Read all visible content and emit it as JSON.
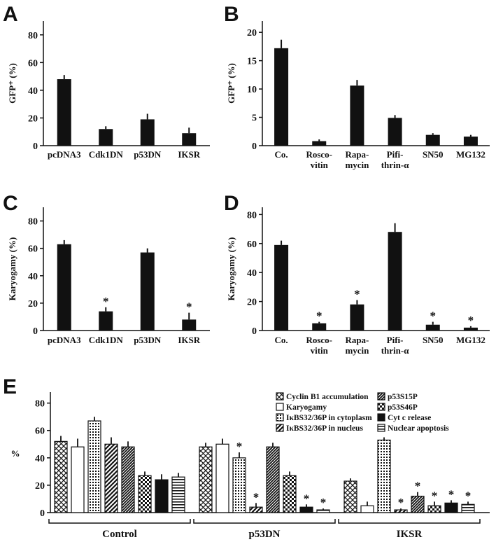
{
  "chart_data": [
    {
      "panel": "A",
      "type": "bar",
      "ylabel": "GFP⁺ (%)",
      "categories": [
        [
          "pcDNA3"
        ],
        [
          "Cdk1DN"
        ],
        [
          "p53DN"
        ],
        [
          "IKSR"
        ]
      ],
      "values": [
        48,
        12,
        19,
        9
      ],
      "errors": [
        3,
        2,
        4,
        4
      ],
      "significant": [
        false,
        false,
        false,
        false
      ],
      "ylim": [
        0,
        90
      ],
      "yticks": [
        0,
        20,
        40,
        60,
        80
      ],
      "color": "#111111"
    },
    {
      "panel": "B",
      "type": "bar",
      "ylabel": "GFP⁺ (%)",
      "categories": [
        [
          "Co."
        ],
        [
          "Rosco-",
          "vitin"
        ],
        [
          "Rapa-",
          "mycin"
        ],
        [
          "Pifi-",
          "thrin-α"
        ],
        [
          "SN50"
        ],
        [
          "MG132"
        ]
      ],
      "values": [
        17.2,
        0.8,
        10.6,
        4.9,
        1.9,
        1.6
      ],
      "errors": [
        1.5,
        0.3,
        1.0,
        0.5,
        0.3,
        0.3
      ],
      "significant": [
        false,
        false,
        false,
        false,
        false,
        false
      ],
      "ylim": [
        0,
        22
      ],
      "yticks": [
        0,
        5,
        10,
        15,
        20
      ],
      "color": "#111111"
    },
    {
      "panel": "C",
      "type": "bar",
      "ylabel": "Karyogamy (%)",
      "categories": [
        [
          "pcDNA3"
        ],
        [
          "Cdk1DN"
        ],
        [
          "p53DN"
        ],
        [
          "IKSR"
        ]
      ],
      "values": [
        63,
        14,
        57,
        8
      ],
      "errors": [
        3,
        3,
        3,
        5
      ],
      "significant": [
        false,
        true,
        false,
        true
      ],
      "ylim": [
        0,
        90
      ],
      "yticks": [
        0,
        20,
        40,
        60,
        80
      ],
      "color": "#111111"
    },
    {
      "panel": "D",
      "type": "bar",
      "ylabel": "Karyogamy (%)",
      "categories": [
        [
          "Co."
        ],
        [
          "Rosco-",
          "vitin"
        ],
        [
          "Rapa-",
          "mycin"
        ],
        [
          "Pifi-",
          "thrin-α"
        ],
        [
          "SN50"
        ],
        [
          "MG132"
        ]
      ],
      "values": [
        59,
        5,
        18,
        68,
        4,
        2
      ],
      "errors": [
        3,
        1,
        3,
        6,
        2,
        1
      ],
      "significant": [
        false,
        true,
        true,
        false,
        true,
        true
      ],
      "ylim": [
        0,
        85
      ],
      "yticks": [
        0,
        20,
        40,
        60,
        80
      ],
      "color": "#111111"
    },
    {
      "panel": "E",
      "type": "bar",
      "ylabel": "%",
      "ylim": [
        0,
        88
      ],
      "yticks": [
        0,
        20,
        40,
        60,
        80
      ],
      "groups": [
        "Control",
        "p53DN",
        "IKSR"
      ],
      "legend": [
        {
          "name": "Cyclin B1 accumulation",
          "pattern": "crosshatch"
        },
        {
          "name": "Karyogamy",
          "pattern": "white"
        },
        {
          "name": "IκBS32/36P in cytoplasm",
          "pattern": "dots"
        },
        {
          "name": "IκBS32/36P in nucleus",
          "pattern": "diag"
        },
        {
          "name": "p53S15P",
          "pattern": "diag-dense"
        },
        {
          "name": "p53S46P",
          "pattern": "checker"
        },
        {
          "name": "Cyt c release",
          "pattern": "black"
        },
        {
          "name": "Nuclear apoptosis",
          "pattern": "hlines"
        }
      ],
      "series_values": [
        [
          52,
          48,
          67,
          50,
          48,
          27,
          24,
          26
        ],
        [
          48,
          50,
          40,
          4,
          48,
          27,
          4,
          2
        ],
        [
          23,
          5,
          53,
          2,
          12,
          5,
          7,
          6
        ]
      ],
      "series_errors": [
        [
          4,
          6,
          3,
          5,
          4,
          3,
          4,
          3
        ],
        [
          3,
          4,
          4,
          3,
          3,
          3,
          2,
          1
        ],
        [
          2,
          3,
          2,
          1,
          3,
          3,
          2,
          2
        ]
      ],
      "series_significant": [
        [
          false,
          false,
          false,
          false,
          false,
          false,
          false,
          false
        ],
        [
          false,
          false,
          true,
          true,
          false,
          false,
          true,
          true
        ],
        [
          false,
          false,
          false,
          true,
          true,
          true,
          true,
          true
        ]
      ]
    }
  ]
}
